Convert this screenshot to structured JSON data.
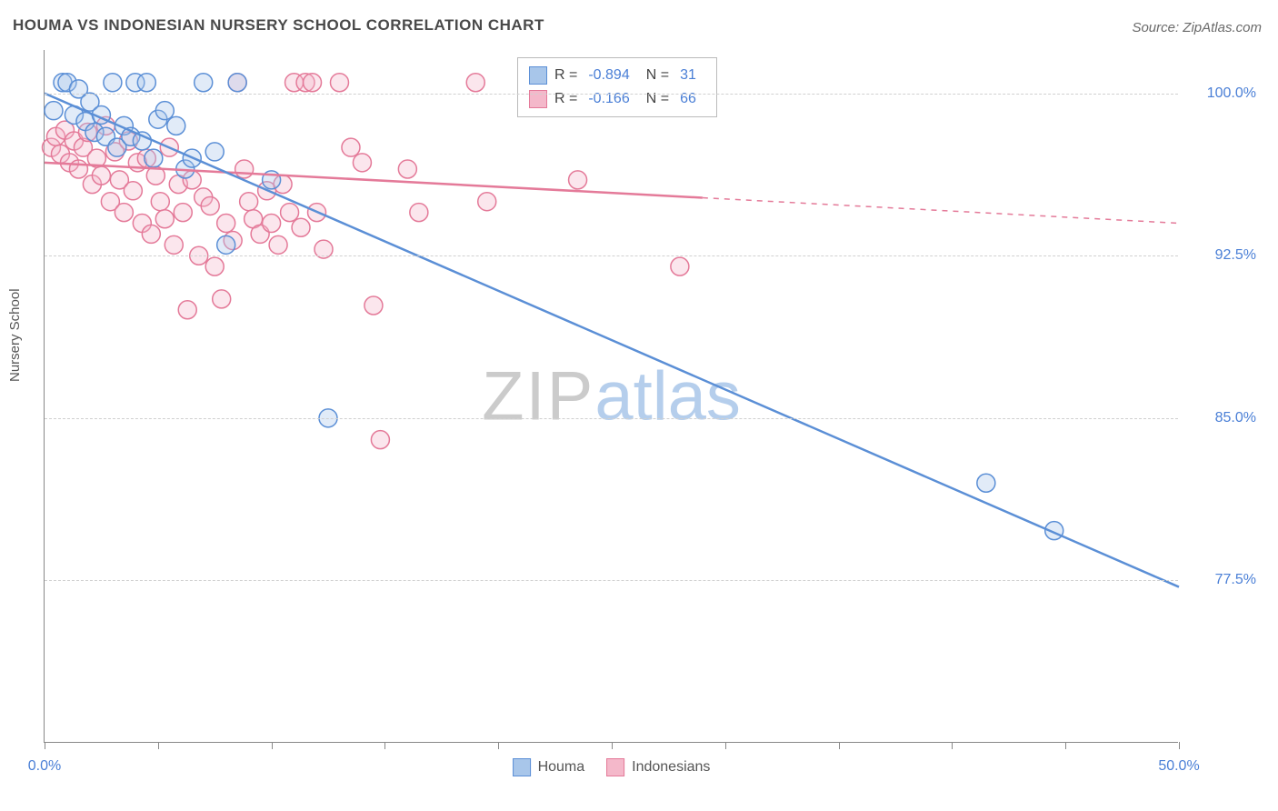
{
  "title": "HOUMA VS INDONESIAN NURSERY SCHOOL CORRELATION CHART",
  "source": "Source: ZipAtlas.com",
  "y_axis_label": "Nursery School",
  "watermark": {
    "part1": "ZIP",
    "part2": "atlas"
  },
  "chart": {
    "type": "scatter",
    "background_color": "#ffffff",
    "grid_color": "#d0d0d0",
    "axis_color": "#888888",
    "text_color_axis": "#4a7fd6",
    "xlim": [
      0,
      50
    ],
    "ylim": [
      70,
      102
    ],
    "x_ticks": [
      0,
      5,
      10,
      15,
      20,
      25,
      30,
      35,
      40,
      45,
      50
    ],
    "x_tick_labels": {
      "0": "0.0%",
      "50": "50.0%"
    },
    "y_ticks": [
      77.5,
      85.0,
      92.5,
      100.0
    ],
    "y_tick_labels": [
      "77.5%",
      "85.0%",
      "92.5%",
      "100.0%"
    ],
    "marker_radius": 10,
    "marker_fill_opacity": 0.35,
    "marker_stroke_width": 1.5,
    "line_width": 2.5,
    "series": [
      {
        "name": "Houma",
        "color": "#5b8fd6",
        "fill": "#a8c6ea",
        "R": "-0.894",
        "N": "31",
        "points": [
          [
            0.4,
            99.2
          ],
          [
            0.8,
            100.5
          ],
          [
            1.0,
            100.5
          ],
          [
            1.3,
            99.0
          ],
          [
            1.5,
            100.2
          ],
          [
            1.8,
            98.7
          ],
          [
            2.0,
            99.6
          ],
          [
            2.2,
            98.2
          ],
          [
            2.5,
            99.0
          ],
          [
            2.7,
            98.0
          ],
          [
            3.0,
            100.5
          ],
          [
            3.2,
            97.5
          ],
          [
            3.5,
            98.5
          ],
          [
            3.8,
            98.0
          ],
          [
            4.0,
            100.5
          ],
          [
            4.3,
            97.8
          ],
          [
            4.5,
            100.5
          ],
          [
            4.8,
            97.0
          ],
          [
            5.0,
            98.8
          ],
          [
            5.3,
            99.2
          ],
          [
            5.8,
            98.5
          ],
          [
            6.2,
            96.5
          ],
          [
            6.5,
            97.0
          ],
          [
            7.0,
            100.5
          ],
          [
            7.5,
            97.3
          ],
          [
            8.0,
            93.0
          ],
          [
            8.5,
            100.5
          ],
          [
            10.0,
            96.0
          ],
          [
            12.5,
            85.0
          ],
          [
            41.5,
            82.0
          ],
          [
            44.5,
            79.8
          ]
        ],
        "trend": {
          "x1": 0,
          "y1": 100.0,
          "x2": 50,
          "y2": 77.2,
          "solid_until_x": 50
        }
      },
      {
        "name": "Indonesians",
        "color": "#e47a99",
        "fill": "#f4b8ca",
        "R": "-0.166",
        "N": "66",
        "points": [
          [
            0.3,
            97.5
          ],
          [
            0.5,
            98.0
          ],
          [
            0.7,
            97.2
          ],
          [
            0.9,
            98.3
          ],
          [
            1.1,
            96.8
          ],
          [
            1.3,
            97.8
          ],
          [
            1.5,
            96.5
          ],
          [
            1.7,
            97.5
          ],
          [
            1.9,
            98.2
          ],
          [
            2.1,
            95.8
          ],
          [
            2.3,
            97.0
          ],
          [
            2.5,
            96.2
          ],
          [
            2.7,
            98.5
          ],
          [
            2.9,
            95.0
          ],
          [
            3.1,
            97.3
          ],
          [
            3.3,
            96.0
          ],
          [
            3.5,
            94.5
          ],
          [
            3.7,
            97.8
          ],
          [
            3.9,
            95.5
          ],
          [
            4.1,
            96.8
          ],
          [
            4.3,
            94.0
          ],
          [
            4.5,
            97.0
          ],
          [
            4.7,
            93.5
          ],
          [
            4.9,
            96.2
          ],
          [
            5.1,
            95.0
          ],
          [
            5.3,
            94.2
          ],
          [
            5.5,
            97.5
          ],
          [
            5.7,
            93.0
          ],
          [
            5.9,
            95.8
          ],
          [
            6.1,
            94.5
          ],
          [
            6.3,
            90.0
          ],
          [
            6.5,
            96.0
          ],
          [
            6.8,
            92.5
          ],
          [
            7.0,
            95.2
          ],
          [
            7.3,
            94.8
          ],
          [
            7.5,
            92.0
          ],
          [
            7.8,
            90.5
          ],
          [
            8.0,
            94.0
          ],
          [
            8.3,
            93.2
          ],
          [
            8.5,
            100.5
          ],
          [
            8.8,
            96.5
          ],
          [
            9.0,
            95.0
          ],
          [
            9.2,
            94.2
          ],
          [
            9.5,
            93.5
          ],
          [
            9.8,
            95.5
          ],
          [
            10.0,
            94.0
          ],
          [
            10.3,
            93.0
          ],
          [
            10.5,
            95.8
          ],
          [
            10.8,
            94.5
          ],
          [
            11.0,
            100.5
          ],
          [
            11.3,
            93.8
          ],
          [
            11.5,
            100.5
          ],
          [
            11.8,
            100.5
          ],
          [
            12.0,
            94.5
          ],
          [
            12.3,
            92.8
          ],
          [
            13.0,
            100.5
          ],
          [
            13.5,
            97.5
          ],
          [
            14.0,
            96.8
          ],
          [
            14.5,
            90.2
          ],
          [
            14.8,
            84.0
          ],
          [
            16.0,
            96.5
          ],
          [
            16.5,
            94.5
          ],
          [
            19.0,
            100.5
          ],
          [
            19.5,
            95.0
          ],
          [
            23.5,
            96.0
          ],
          [
            28.0,
            92.0
          ]
        ],
        "trend": {
          "x1": 0,
          "y1": 96.8,
          "x2": 50,
          "y2": 94.0,
          "solid_until_x": 29
        }
      }
    ]
  },
  "legend_top": {
    "R_label": "R =",
    "N_label": "N ="
  },
  "legend_bottom": [
    {
      "label": "Houma",
      "swatch_fill": "#a8c6ea",
      "swatch_stroke": "#5b8fd6"
    },
    {
      "label": "Indonesians",
      "swatch_fill": "#f4b8ca",
      "swatch_stroke": "#e47a99"
    }
  ]
}
